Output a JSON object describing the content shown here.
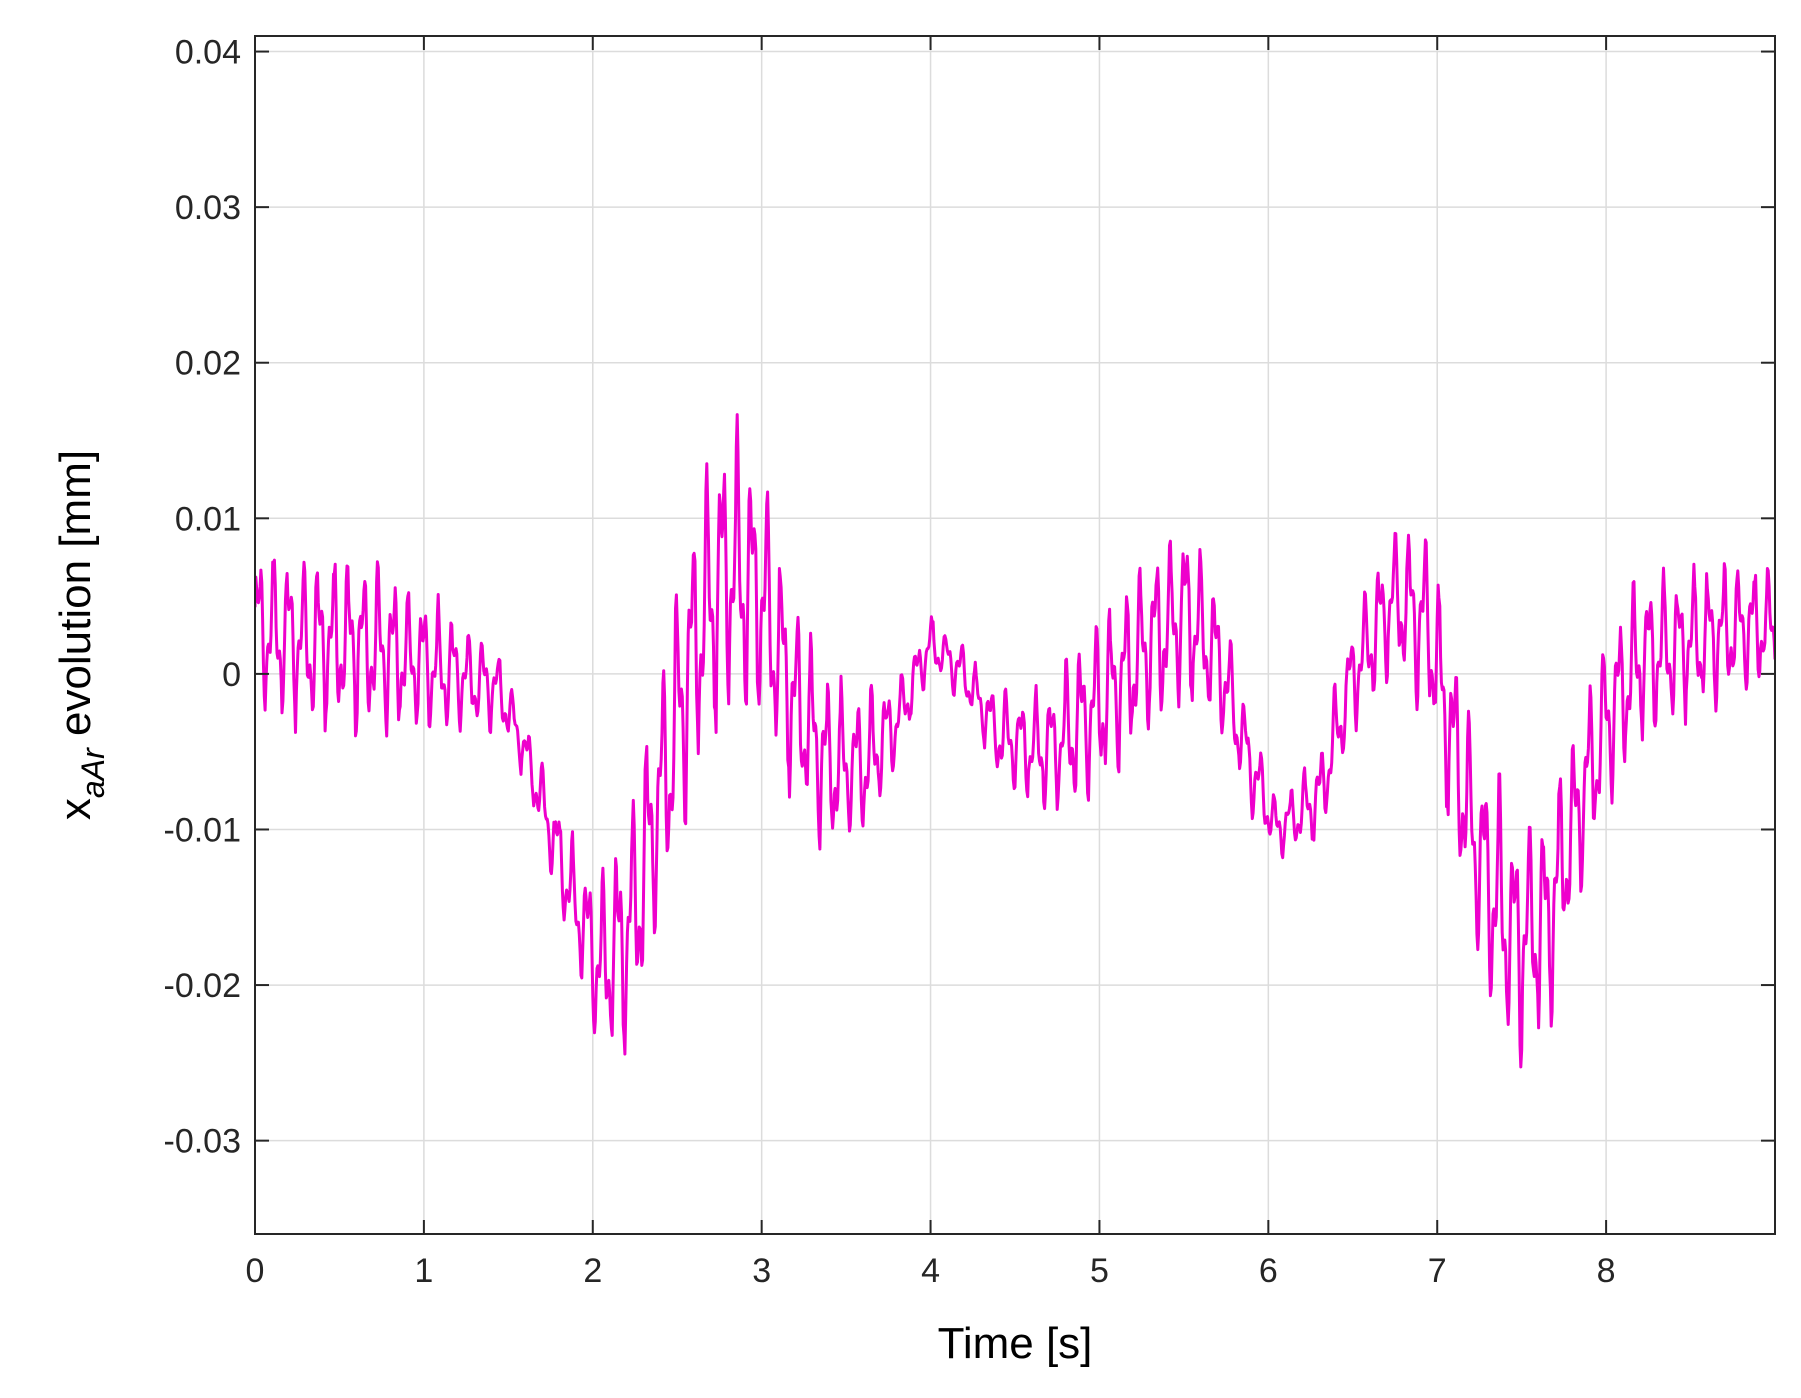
{
  "chart_data": {
    "type": "line",
    "title": "",
    "xlabel": "Time [s]",
    "ylabel_main": "x",
    "ylabel_sub": "aAr",
    "ylabel_rest": " evolution [mm]",
    "xlim": [
      0,
      9
    ],
    "ylim": [
      -0.036,
      0.041
    ],
    "xticks": [
      0,
      1,
      2,
      3,
      4,
      5,
      6,
      7,
      8
    ],
    "xtick_labels": [
      "0",
      "1",
      "2",
      "3",
      "4",
      "5",
      "6",
      "7",
      "8"
    ],
    "yticks": [
      -0.03,
      -0.02,
      -0.01,
      0,
      0.01,
      0.02,
      0.03,
      0.04
    ],
    "ytick_labels": [
      "-0.03",
      "-0.02",
      "-0.01",
      "0",
      "0.01",
      "0.02",
      "0.03",
      "0.04"
    ],
    "grid": true,
    "line_color": "#ee00cc",
    "series": [
      {
        "envelope_t": [
          0,
          0.3,
          0.6,
          0.9,
          1.2,
          1.45,
          1.6,
          1.75,
          1.9,
          2.05,
          2.2,
          2.4,
          2.6,
          2.8,
          3.0,
          3.2,
          3.4,
          3.6,
          3.8,
          4.0,
          4.2,
          4.4,
          4.7,
          5.0,
          5.3,
          5.5,
          5.7,
          5.9,
          6.05,
          6.3,
          6.5,
          6.75,
          6.95,
          7.1,
          7.25,
          7.45,
          7.65,
          7.8,
          8.0,
          8.2,
          8.5,
          8.8,
          9.0
        ],
        "envelope_mid": [
          0.003,
          0.002,
          0.002,
          0.001,
          0.0,
          -0.001,
          -0.005,
          -0.01,
          -0.015,
          -0.019,
          -0.017,
          -0.008,
          0.002,
          0.007,
          0.005,
          -0.002,
          -0.006,
          -0.006,
          -0.003,
          0.002,
          0.0,
          -0.004,
          -0.005,
          -0.002,
          0.002,
          0.004,
          0.001,
          -0.006,
          -0.01,
          -0.008,
          0.0,
          0.005,
          0.003,
          -0.005,
          -0.012,
          -0.017,
          -0.016,
          -0.01,
          -0.003,
          0.001,
          0.002,
          0.003,
          0.003
        ],
        "envelope_amp": [
          0.0055,
          0.006,
          0.006,
          0.005,
          0.004,
          0.0025,
          0.002,
          0.003,
          0.004,
          0.0065,
          0.008,
          0.009,
          0.0095,
          0.0095,
          0.009,
          0.007,
          0.006,
          0.005,
          0.003,
          0.002,
          0.002,
          0.003,
          0.0045,
          0.006,
          0.006,
          0.006,
          0.005,
          0.003,
          0.002,
          0.003,
          0.004,
          0.005,
          0.006,
          0.0075,
          0.008,
          0.0085,
          0.008,
          0.0065,
          0.006,
          0.0055,
          0.005,
          0.0045,
          0.004
        ]
      }
    ]
  }
}
